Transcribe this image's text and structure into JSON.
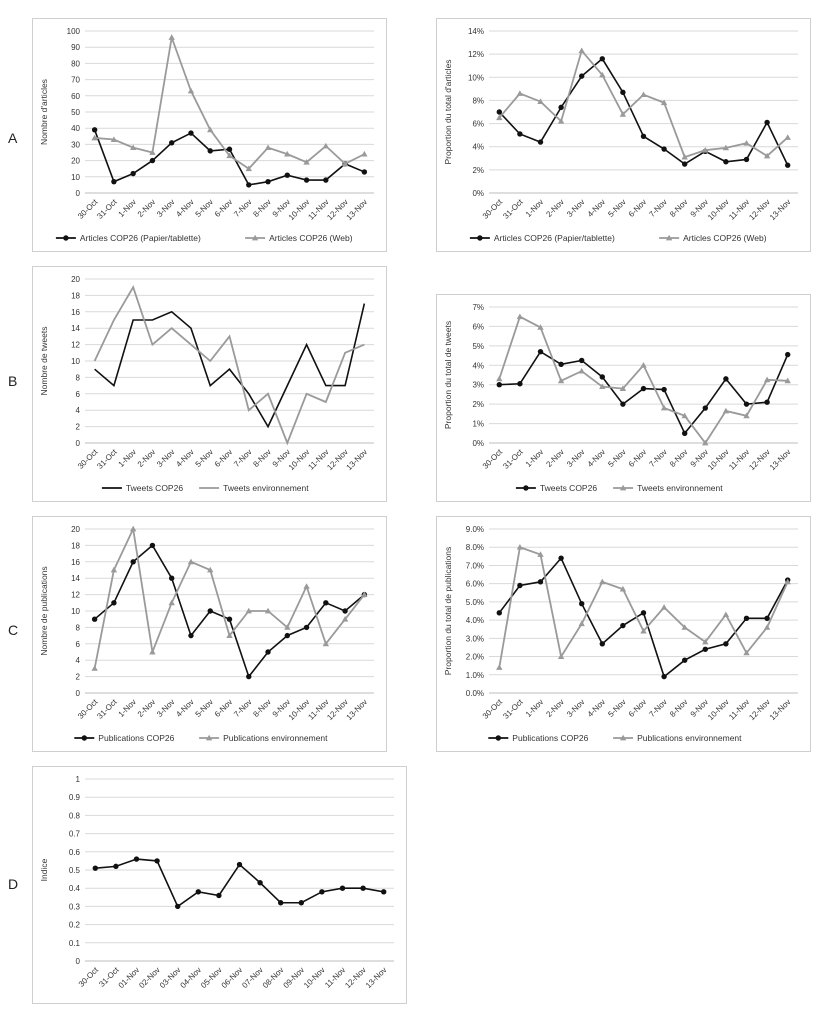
{
  "row_labels": [
    "A",
    "B",
    "C",
    "D"
  ],
  "colors": {
    "black": "#111111",
    "gray": "#9a9a9a",
    "grid": "#d9d9d9"
  },
  "chart_data": [
    {
      "id": "A-left",
      "type": "line",
      "categories": [
        "30-Oct",
        "31-Oct",
        "1-Nov",
        "2-Nov",
        "3-Nov",
        "4-Nov",
        "5-Nov",
        "6-Nov",
        "7-Nov",
        "8-Nov",
        "9-Nov",
        "10-Nov",
        "11-Nov",
        "12-Nov",
        "13-Nov"
      ],
      "ylabel": "Nombre d'articles",
      "ylim": [
        0,
        100
      ],
      "yticks": [
        "0",
        "10",
        "20",
        "30",
        "40",
        "50",
        "60",
        "70",
        "80",
        "90",
        "100"
      ],
      "series": [
        {
          "name": "Articles COP26 (Papier/tablette)",
          "color": "black",
          "marker": "circle",
          "values": [
            39,
            7,
            12,
            20,
            31,
            37,
            26,
            27,
            5,
            7,
            11,
            8,
            8,
            18,
            13
          ]
        },
        {
          "name": "Articles COP26 (Web)",
          "color": "gray",
          "marker": "triangle",
          "values": [
            34,
            33,
            28,
            25,
            96,
            63,
            39,
            23,
            15,
            28,
            24,
            19,
            29,
            18,
            24
          ]
        }
      ],
      "legend": "bottom"
    },
    {
      "id": "A-right",
      "type": "line",
      "categories": [
        "30-Oct",
        "31-Oct",
        "1-Nov",
        "2-Nov",
        "3-Nov",
        "4-Nov",
        "5-Nov",
        "6-Nov",
        "7-Nov",
        "8-Nov",
        "9-Nov",
        "10-Nov",
        "11-Nov",
        "12-Nov",
        "13-Nov"
      ],
      "ylabel": "Proportion du total d'articles",
      "ylim": [
        0,
        14
      ],
      "yticks": [
        "0%",
        "2%",
        "4%",
        "6%",
        "8%",
        "10%",
        "12%",
        "14%"
      ],
      "series": [
        {
          "name": "Articles COP26 (Papier/tablette)",
          "color": "black",
          "marker": "circle",
          "values": [
            7.0,
            5.1,
            4.4,
            7.4,
            10.1,
            11.6,
            8.7,
            4.9,
            3.8,
            2.5,
            3.6,
            2.7,
            2.9,
            6.1,
            2.4
          ]
        },
        {
          "name": "Articles COP26 (Web)",
          "color": "gray",
          "marker": "triangle",
          "values": [
            6.5,
            8.6,
            7.9,
            6.2,
            12.3,
            10.2,
            6.8,
            8.5,
            7.8,
            3.1,
            3.7,
            3.9,
            4.3,
            3.2,
            4.8
          ]
        }
      ],
      "legend": "bottom"
    },
    {
      "id": "B-left",
      "type": "line",
      "categories": [
        "30-Oct",
        "31-Oct",
        "1-Nov",
        "2-Nov",
        "3-Nov",
        "4-Nov",
        "5-Nov",
        "6-Nov",
        "7-Nov",
        "8-Nov",
        "9-Nov",
        "10-Nov",
        "11-Nov",
        "12-Nov",
        "13-Nov"
      ],
      "ylabel": "Nombre de tweets",
      "ylim": [
        0,
        20
      ],
      "yticks": [
        "0",
        "2",
        "4",
        "6",
        "8",
        "10",
        "12",
        "14",
        "16",
        "18",
        "20"
      ],
      "series": [
        {
          "name": "Tweets COP26",
          "color": "black",
          "marker": "none",
          "values": [
            9,
            7,
            15,
            15,
            16,
            14,
            7,
            9,
            6,
            2,
            7,
            12,
            7,
            7,
            17
          ]
        },
        {
          "name": "Tweets environnement",
          "color": "gray",
          "marker": "none",
          "values": [
            10,
            15,
            19,
            12,
            14,
            12,
            10,
            13,
            4,
            6,
            0,
            6,
            5,
            11,
            12
          ]
        }
      ],
      "legend": "bottom"
    },
    {
      "id": "B-right",
      "type": "line",
      "categories": [
        "30-Oct",
        "31-Oct",
        "1-Nov",
        "2-Nov",
        "3-Nov",
        "4-Nov",
        "5-Nov",
        "6-Nov",
        "7-Nov",
        "8-Nov",
        "9-Nov",
        "10-Nov",
        "11-Nov",
        "12-Nov",
        "13-Nov"
      ],
      "ylabel": "Proportion du total de tweets",
      "ylim": [
        0,
        7
      ],
      "yticks": [
        "0%",
        "1%",
        "2%",
        "3%",
        "4%",
        "5%",
        "6%",
        "7%"
      ],
      "series": [
        {
          "name": "Tweets COP26",
          "color": "black",
          "marker": "circle",
          "values": [
            3.0,
            3.05,
            4.7,
            4.05,
            4.25,
            3.4,
            2.0,
            2.8,
            2.75,
            0.5,
            1.8,
            3.3,
            2.0,
            2.1,
            4.55
          ]
        },
        {
          "name": "Tweets environnement",
          "color": "gray",
          "marker": "triangle",
          "values": [
            3.3,
            6.5,
            5.95,
            3.2,
            3.7,
            2.9,
            2.8,
            4.0,
            1.8,
            1.4,
            0.0,
            1.65,
            1.4,
            3.25,
            3.2
          ]
        }
      ],
      "legend": "bottom"
    },
    {
      "id": "C-left",
      "type": "line",
      "categories": [
        "30-Oct",
        "31-Oct",
        "1-Nov",
        "2-Nov",
        "3-Nov",
        "4-Nov",
        "5-Nov",
        "6-Nov",
        "7-Nov",
        "8-Nov",
        "9-Nov",
        "10-Nov",
        "11-Nov",
        "12-Nov",
        "13-Nov"
      ],
      "ylabel": "Nombre de publications",
      "ylim": [
        0,
        20
      ],
      "yticks": [
        "0",
        "2",
        "4",
        "6",
        "8",
        "10",
        "12",
        "14",
        "16",
        "18",
        "20"
      ],
      "series": [
        {
          "name": "Publications COP26",
          "color": "black",
          "marker": "circle",
          "values": [
            9,
            11,
            16,
            18,
            14,
            7,
            10,
            9,
            2,
            5,
            7,
            8,
            11,
            10,
            12
          ]
        },
        {
          "name": "Publications environnement",
          "color": "gray",
          "marker": "triangle",
          "values": [
            3,
            15,
            20,
            5,
            11,
            16,
            15,
            7,
            10,
            10,
            8,
            13,
            6,
            9,
            12
          ]
        }
      ],
      "legend": "bottom"
    },
    {
      "id": "C-right",
      "type": "line",
      "categories": [
        "30-Oct",
        "31-Oct",
        "1-Nov",
        "2-Nov",
        "3-Nov",
        "4-Nov",
        "5-Nov",
        "6-Nov",
        "7-Nov",
        "8-Nov",
        "9-Nov",
        "10-Nov",
        "11-Nov",
        "12-Nov",
        "13-Nov"
      ],
      "ylabel": "Proportion du total de publications",
      "ylim": [
        0,
        9
      ],
      "yticks": [
        "0.0%",
        "1.0%",
        "2.0%",
        "3.0%",
        "4.0%",
        "5.0%",
        "6.0%",
        "7.0%",
        "8.0%",
        "9.0%"
      ],
      "series": [
        {
          "name": "Publications COP26",
          "color": "black",
          "marker": "circle",
          "values": [
            4.4,
            5.9,
            6.1,
            7.4,
            4.9,
            2.7,
            3.7,
            4.4,
            0.9,
            1.8,
            2.4,
            2.7,
            4.1,
            4.1,
            6.2
          ]
        },
        {
          "name": "Publications environnement",
          "color": "gray",
          "marker": "triangle",
          "values": [
            1.4,
            8.0,
            7.6,
            2.0,
            3.8,
            6.1,
            5.7,
            3.4,
            4.7,
            3.6,
            2.8,
            4.3,
            2.2,
            3.6,
            6.1
          ]
        }
      ],
      "legend": "bottom"
    },
    {
      "id": "D",
      "type": "line",
      "categories": [
        "30-Oct",
        "31-Oct",
        "01-Nov",
        "02-Nov",
        "03-Nov",
        "04-Nov",
        "05-Nov",
        "06-Nov",
        "07-Nov",
        "08-Nov",
        "09-Nov",
        "10-Nov",
        "11-Nov",
        "12-Nov",
        "13-Nov"
      ],
      "ylabel": "Indice",
      "ylim": [
        0,
        1
      ],
      "yticks": [
        "0",
        "0.1",
        "0.2",
        "0.3",
        "0.4",
        "0.5",
        "0.6",
        "0.7",
        "0.8",
        "0.9",
        "1"
      ],
      "series": [
        {
          "color": "black",
          "marker": "circle",
          "values": [
            0.51,
            0.52,
            0.56,
            0.55,
            0.3,
            0.38,
            0.36,
            0.53,
            0.43,
            0.32,
            0.32,
            0.38,
            0.4,
            0.4,
            0.38
          ]
        }
      ],
      "legend": "none"
    }
  ]
}
